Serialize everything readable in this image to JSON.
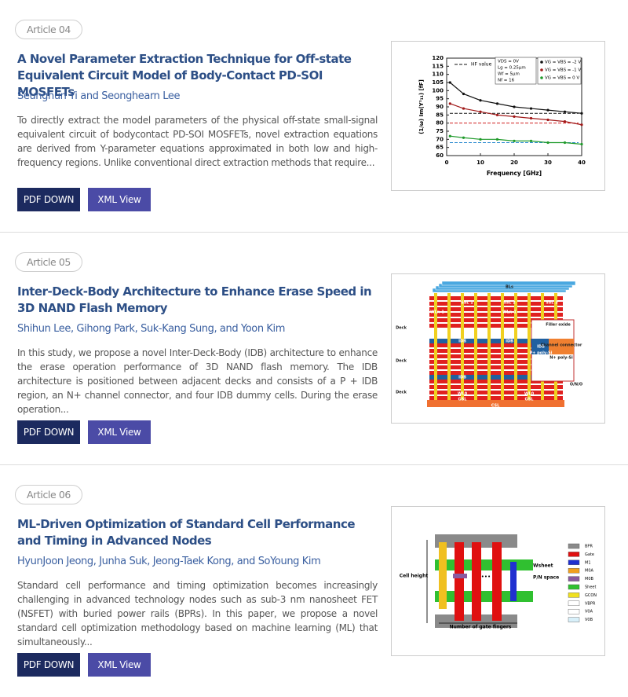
{
  "articles": [
    {
      "label": "Article 04",
      "title": "A Novel Parameter Extraction Technique for Off-state Equivalent Circuit Model of Body-Contact PD-SOI MOSFETs",
      "authors": "Seunghun Yi and Seonghearn Lee",
      "abstract": "To directly extract the model parameters of the physical off-state small-signal equivalent circuit of bodycontact PD-SOI MOSFETs, novel extraction equations are derived from Y-parameter equations approximated in both low and high-frequency regions. Unlike conventional direct extraction methods that require...",
      "buttons": [
        "PDF DOWN",
        "XML View"
      ],
      "figure": {
        "type": "line",
        "xlabel": "Frequency [GHz]",
        "ylabel": "(1/ω) Im(Y¹₁₁) [fF]",
        "x": [
          1,
          5,
          10,
          15,
          20,
          25,
          30,
          35,
          40
        ],
        "xlim": [
          0,
          40
        ],
        "xticks": [
          0,
          10,
          20,
          30,
          40
        ],
        "ylim": [
          60,
          120
        ],
        "yticks": [
          60,
          65,
          70,
          75,
          80,
          85,
          90,
          95,
          100,
          105,
          110,
          115,
          120
        ],
        "series": [
          {
            "name": "VG = VBS = -2 V",
            "color": "#111111",
            "values": [
              105,
              98,
              94,
              92,
              90,
              89,
              88,
              87,
              86
            ]
          },
          {
            "name": "VG = VBS = -1 V",
            "color": "#a01818",
            "values": [
              92,
              89,
              87,
              85,
              84,
              83,
              82,
              81,
              79
            ]
          },
          {
            "name": "VG = VBS = 0 V",
            "color": "#1f9a2a",
            "values": [
              72,
              71,
              70,
              70,
              69,
              69,
              68,
              68,
              67
            ]
          }
        ],
        "hf_label": "HF value",
        "hf_lines": [
          {
            "value": 86,
            "color": "#111111"
          },
          {
            "value": 80,
            "color": "#d02020"
          },
          {
            "value": 68,
            "color": "#2a8ad0"
          }
        ],
        "notes": [
          "VDS = 0V",
          "Lg = 0.25μm",
          "Wf = 5μm",
          "Nf = 16"
        ]
      }
    },
    {
      "label": "Article 05",
      "title": "Inter-Deck-Body Architecture to Enhance Erase Speed in 3D NAND Flash Memory",
      "authors": "Shihun Lee, Gihong Park, Suk-Kang Sung, and Yoon Kim",
      "abstract": "In this study, we propose a novel Inter-Deck-Body (IDB) architecture to enhance the erase operation performance of 3D NAND flash memory. The IDB architecture is positioned between adjacent decks and consists of a P + IDB region, an N+ channel connector, and four IDB dummy cells. During the erase operation...",
      "buttons": [
        "PDF DOWN",
        "XML View"
      ],
      "figure": {
        "type": "nand",
        "labels": {
          "bls": "BLs",
          "ssl0": "SSL 0",
          "ssl1": "SSL 1",
          "ssl2": "SSL 2",
          "ssl3": "SSL 3",
          "wln": "WLn-1",
          "wln2": "WLn-1",
          "idb1": "IDB",
          "idb2": "IDB",
          "idb3": "IDB",
          "idb4": "IDB",
          "deck1": "Deck",
          "deck2": "Deck",
          "deck3": "Deck",
          "wl0": "WL0",
          "wl0b": "WL0",
          "gsl": "GSL",
          "gslb": "GSL",
          "csl": "CSL",
          "filler": "Filler oxide",
          "conn": "Channel connector",
          "npoly": "N+ poly-Si",
          "ppoly": "P+ poly-Si",
          "ono": "O/N/O",
          "idbwl2": "IDB WL 2",
          "idbwl1": "IDB WL 1"
        }
      }
    },
    {
      "label": "Article 06",
      "title": "ML-Driven Optimization of Standard Cell Performance and Timing in Advanced Nodes",
      "authors": "HyunJoon Jeong, Junha Suk, Jeong-Taek Kong, and SoYoung Kim",
      "abstract": "Standard cell performance and timing optimization becomes increasingly challenging in advanced technology nodes such as sub-3 nm nanosheet FET (NSFET) with buried power rails (BPRs). In this paper, we propose a novel standard cell optimization methodology based on machine learning (ML) that simultaneously...",
      "buttons": [
        "PDF DOWN",
        "XML View"
      ],
      "figure": {
        "type": "cell",
        "cell_height": "Cell height",
        "wsheet": "Wsheet",
        "pn_space": "P/N space",
        "fingers": "Number of gate fingers",
        "dots": "•••",
        "legend": [
          {
            "name": "BPR",
            "color": "#8a8a8a"
          },
          {
            "name": "Gate",
            "color": "#e01010"
          },
          {
            "name": "M1",
            "color": "#2030d0"
          },
          {
            "name": "M0A",
            "color": "#f0a020"
          },
          {
            "name": "M0B",
            "color": "#8a5aa0"
          },
          {
            "name": "Sheet",
            "color": "#30c030"
          },
          {
            "name": "GCON",
            "color": "#f0e020"
          },
          {
            "name": "VBPR",
            "color": "#ffffff"
          },
          {
            "name": "V0A",
            "color": "#ffffff"
          },
          {
            "name": "V0B",
            "color": "#d8f0fa"
          }
        ]
      }
    }
  ]
}
